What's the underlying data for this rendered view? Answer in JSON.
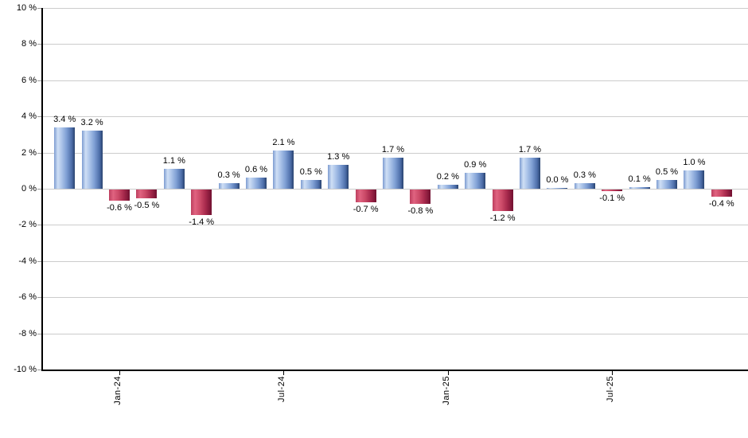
{
  "chart_data": {
    "type": "bar",
    "title": "",
    "xlabel": "",
    "ylabel": "",
    "ylim": [
      -10,
      10
    ],
    "grid": true,
    "unit": "%",
    "values": [
      3.4,
      3.2,
      -0.6,
      -0.5,
      1.1,
      -1.4,
      0.3,
      0.6,
      2.1,
      0.5,
      1.3,
      -0.7,
      1.7,
      -0.8,
      0.2,
      0.9,
      -1.2,
      1.7,
      0.0,
      0.3,
      -0.1,
      0.1,
      0.5,
      1.0,
      -0.4
    ],
    "bar_labels": [
      "3.4 %",
      "3.2 %",
      "-0.6 %",
      "-0.5 %",
      "1.1 %",
      "-1.4 %",
      "0.3 %",
      "0.6 %",
      "2.1 %",
      "0.5 %",
      "1.3 %",
      "-0.7 %",
      "1.7 %",
      "-0.8 %",
      "0.2 %",
      "0.9 %",
      "-1.2 %",
      "1.7 %",
      "0.0 %",
      "0.3 %",
      "-0.1 %",
      "0.1 %",
      "0.5 %",
      "1.0 %",
      "-0.4 %"
    ],
    "x_ticks": [
      {
        "label": "Jan-24",
        "bar_index": 2
      },
      {
        "label": "Jul-24",
        "bar_index": 8
      },
      {
        "label": "Jan-25",
        "bar_index": 14
      },
      {
        "label": "Jul-25",
        "bar_index": 20
      }
    ],
    "y_ticks": [
      {
        "label": "10 %",
        "value": 10
      },
      {
        "label": "8 %",
        "value": 8
      },
      {
        "label": "6 %",
        "value": 6
      },
      {
        "label": "4 %",
        "value": 4
      },
      {
        "label": "2 %",
        "value": 2
      },
      {
        "label": "0 %",
        "value": 0
      },
      {
        "label": "-2 %",
        "value": -2
      },
      {
        "label": "-4 %",
        "value": -4
      },
      {
        "label": "-6 %",
        "value": -6
      },
      {
        "label": "-8 %",
        "value": -8
      },
      {
        "label": "-10 %",
        "value": -10
      }
    ],
    "colors": {
      "positive_bar": "#7f9fd4",
      "positive_bar_edge": "#28426f",
      "negative_bar": "#cb4a68",
      "negative_bar_edge": "#711030",
      "gridline": "#cccccc",
      "axis": "#000000",
      "label_text": "#000000"
    }
  }
}
